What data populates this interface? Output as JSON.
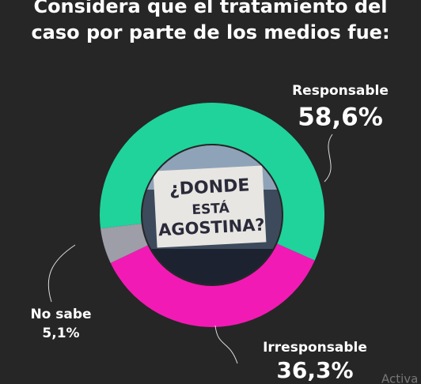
{
  "chart_data": {
    "type": "donut",
    "title": "Considera que el tratamiento del caso por parte de los medios fue:",
    "categories": [
      "Responsable",
      "Irresponsable",
      "No sabe"
    ],
    "values": [
      58.6,
      36.3,
      5.1
    ],
    "value_labels": [
      "58,6%",
      "36,3%",
      "5,1%"
    ],
    "colors": [
      "#1fd39b",
      "#f21ab4",
      "#9d9ea7"
    ],
    "image_text": [
      "¿DONDE",
      "ESTÁ",
      "AGOSTINA?"
    ],
    "watermark": "Activa"
  }
}
